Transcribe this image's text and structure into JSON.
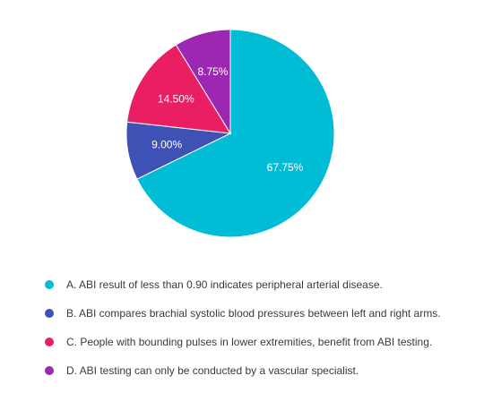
{
  "chart_data": {
    "type": "pie",
    "title": "",
    "slices": [
      {
        "label": "A. ABI result of less than 0.90 indicates peripheral arterial disease.",
        "value": 67.75,
        "display": "67.75%",
        "color": "#00bcd4"
      },
      {
        "label": "B. ABI compares brachial systolic blood pressures between left and right arms.",
        "value": 9.0,
        "display": "9.00%",
        "color": "#3f51b5"
      },
      {
        "label": "C. People with bounding pulses in lower extremities, benefit from ABI testing.",
        "value": 14.5,
        "display": "14.50%",
        "color": "#e91e63"
      },
      {
        "label": "D. ABI testing can only be conducted by a vascular specialist.",
        "value": 8.75,
        "display": "8.75%",
        "color": "#9c27b0"
      }
    ],
    "legend_position": "bottom"
  }
}
